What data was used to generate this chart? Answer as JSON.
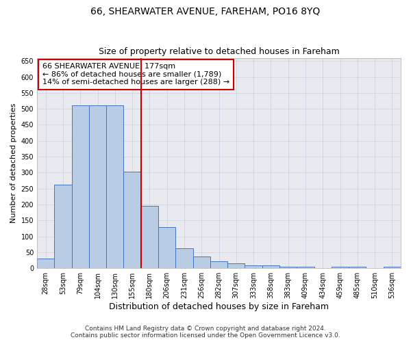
{
  "title1": "66, SHEARWATER AVENUE, FAREHAM, PO16 8YQ",
  "title2": "Size of property relative to detached houses in Fareham",
  "xlabel": "Distribution of detached houses by size in Fareham",
  "ylabel": "Number of detached properties",
  "categories": [
    "28sqm",
    "53sqm",
    "79sqm",
    "104sqm",
    "130sqm",
    "155sqm",
    "180sqm",
    "206sqm",
    "231sqm",
    "256sqm",
    "282sqm",
    "307sqm",
    "333sqm",
    "358sqm",
    "383sqm",
    "409sqm",
    "434sqm",
    "459sqm",
    "485sqm",
    "510sqm",
    "536sqm"
  ],
  "values": [
    30,
    263,
    512,
    511,
    510,
    303,
    195,
    130,
    63,
    37,
    22,
    16,
    9,
    8,
    5,
    5,
    0,
    5,
    5,
    0,
    5
  ],
  "bar_color": "#b8cce4",
  "bar_edge_color": "#4472c4",
  "annotation_text_line1": "66 SHEARWATER AVENUE: 177sqm",
  "annotation_text_line2": "← 86% of detached houses are smaller (1,789)",
  "annotation_text_line3": "14% of semi-detached houses are larger (288) →",
  "annotation_box_color": "#ffffff",
  "annotation_border_color": "#cc0000",
  "vline_color": "#cc0000",
  "vline_x": 6.0,
  "ylim": [
    0,
    660
  ],
  "yticks": [
    0,
    50,
    100,
    150,
    200,
    250,
    300,
    350,
    400,
    450,
    500,
    550,
    600,
    650
  ],
  "grid_color": "#c8cfe0",
  "background_color": "#e8eaf0",
  "footer1": "Contains HM Land Registry data © Crown copyright and database right 2024.",
  "footer2": "Contains public sector information licensed under the Open Government Licence v3.0.",
  "title1_fontsize": 10,
  "title2_fontsize": 9,
  "tick_fontsize": 7,
  "ylabel_fontsize": 8,
  "xlabel_fontsize": 9,
  "annotation_fontsize": 8,
  "footer_fontsize": 6.5
}
